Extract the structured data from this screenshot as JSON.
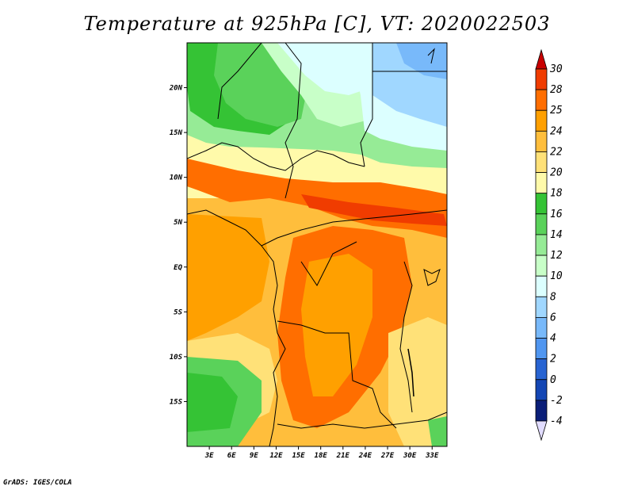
{
  "title": "Temperature at 925hPa [C], VT: 2020022503",
  "credit": "GrADS: IGES/COLA",
  "lat_labels": [
    "20N",
    "15N",
    "10N",
    "5N",
    "EQ",
    "5S",
    "10S",
    "15S"
  ],
  "lon_labels": [
    "3E",
    "6E",
    "9E",
    "12E",
    "15E",
    "18E",
    "21E",
    "24E",
    "27E",
    "30E",
    "33E"
  ],
  "colorbar": {
    "labels": [
      "30",
      "28",
      "25",
      "24",
      "22",
      "20",
      "18",
      "16",
      "14",
      "12",
      "10",
      "8",
      "6",
      "4",
      "2",
      "0",
      "-2",
      "-4"
    ],
    "colors": [
      "#c80000",
      "#f03c00",
      "#ff6e00",
      "#ffa000",
      "#ffbe3c",
      "#ffe178",
      "#fffaaa",
      "#35c335",
      "#5ad25a",
      "#96eb96",
      "#c8ffc8",
      "#dcffff",
      "#a0d7ff",
      "#78b9fa",
      "#5096f0",
      "#2864d2",
      "#1446b4",
      "#0a1e78",
      "#050a4a",
      "#e1dcff"
    ]
  },
  "chart_data": {
    "type": "heatmap",
    "title": "Temperature at 925hPa [C], VT: 2020022503",
    "variable": "Temperature at 925hPa",
    "units": "C",
    "valid_time": "2020022503",
    "x_axis": {
      "ticks": [
        "3E",
        "6E",
        "9E",
        "12E",
        "15E",
        "18E",
        "21E",
        "24E",
        "27E",
        "30E",
        "33E"
      ],
      "range": [
        0,
        35
      ]
    },
    "y_axis": {
      "ticks": [
        "15S",
        "10S",
        "5S",
        "EQ",
        "5N",
        "10N",
        "15N",
        "20N"
      ],
      "range": [
        -20,
        25
      ]
    },
    "contour_levels": [
      -4,
      -2,
      0,
      2,
      4,
      6,
      8,
      10,
      12,
      14,
      16,
      18,
      20,
      22,
      24,
      25,
      28,
      30
    ]
  }
}
